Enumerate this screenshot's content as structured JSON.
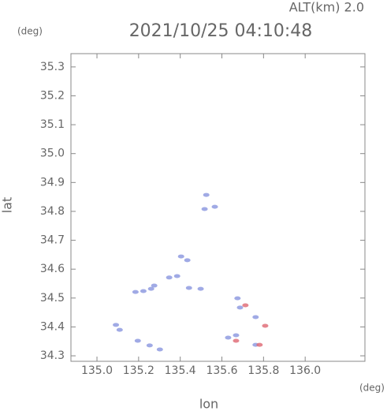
{
  "chart_data": {
    "type": "scatter",
    "subtitle": "ALT(km) 2.0",
    "title": "2021/10/25 04:10:48",
    "y_unit": "(deg)",
    "x_unit": "(deg)",
    "xlabel": "lon",
    "ylabel": "lat",
    "xlim": [
      134.875,
      136.287
    ],
    "ylim": [
      34.281,
      35.346
    ],
    "xticks": [
      {
        "value": 135,
        "label": "135.0"
      },
      135.2,
      135.4,
      135.6,
      135.8,
      {
        "value": 136,
        "label": "136.0"
      }
    ],
    "yticks": [
      34.3,
      34.4,
      34.5,
      34.6,
      34.7,
      34.8,
      34.9,
      {
        "value": 35,
        "label": "35.0"
      },
      35.1,
      35.2,
      35.3
    ],
    "grid": false,
    "series": [
      {
        "color": "#8f9be0",
        "x": [
          135.517,
          135.566,
          135.525,
          135.185,
          135.223,
          135.26,
          135.275,
          135.347,
          135.385,
          135.404,
          135.434,
          135.442,
          135.498,
          135.091,
          135.109,
          135.196,
          135.253,
          135.302,
          135.675,
          135.687,
          135.762,
          135.63,
          135.668,
          135.762
        ],
        "values": [
          34.808,
          34.816,
          34.857,
          34.521,
          34.524,
          34.532,
          34.543,
          34.571,
          34.576,
          34.644,
          34.631,
          34.535,
          34.532,
          34.407,
          34.39,
          34.352,
          34.336,
          34.322,
          34.499,
          34.467,
          34.434,
          34.363,
          34.371,
          34.338
        ]
      },
      {
        "color": "#e0707a",
        "x": [
          135.713,
          135.781,
          135.668,
          135.808
        ],
        "values": [
          34.475,
          34.338,
          34.352,
          34.404
        ]
      }
    ]
  }
}
